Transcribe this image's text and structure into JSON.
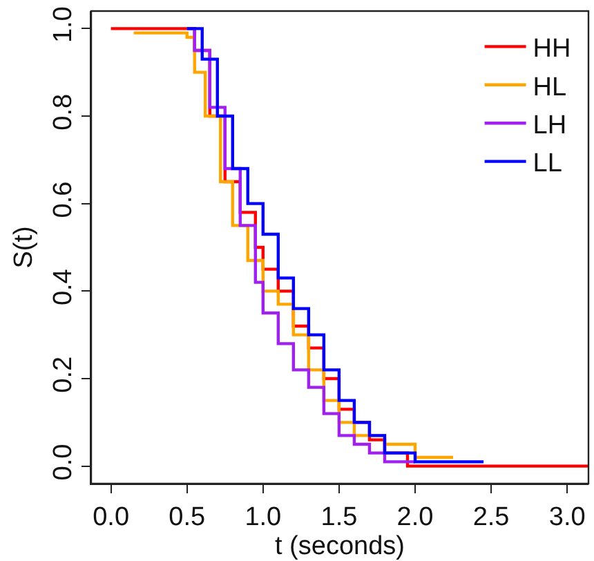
{
  "chart_data": {
    "type": "step",
    "xlabel": "t (seconds)",
    "ylabel": "S(t)",
    "xlim": [
      -0.13,
      3.14
    ],
    "ylim": [
      -0.04,
      1.04
    ],
    "xticks": [
      {
        "value": 0,
        "label": "0.0"
      },
      0.5,
      {
        "value": 1,
        "label": "1.0"
      },
      1.5,
      {
        "value": 2,
        "label": "2.0"
      },
      2.5,
      {
        "value": 3,
        "label": "3.0"
      }
    ],
    "yticks": [
      {
        "value": 0,
        "label": "0.0"
      },
      0.2,
      0.4,
      0.6,
      0.8,
      {
        "value": 1,
        "label": "1.0"
      }
    ],
    "grid": false,
    "legend": "top right",
    "line_style": "solid",
    "series": [
      {
        "name": "HH",
        "color": "#ff0000",
        "x": [
          0,
          0.5,
          0.55,
          0.65,
          0.75,
          0.85,
          0.95,
          1.0,
          1.1,
          1.2,
          1.3,
          1.4,
          1.5,
          1.6,
          1.7,
          1.8,
          1.95,
          3.14
        ],
        "values": [
          1,
          1,
          0.95,
          0.8,
          0.65,
          0.58,
          0.5,
          0.45,
          0.4,
          0.32,
          0.27,
          0.2,
          0.13,
          0.1,
          0.06,
          0.03,
          0,
          0
        ]
      },
      {
        "name": "HL",
        "color": "#ffa500",
        "x": [
          0.15,
          0.5,
          0.55,
          0.62,
          0.72,
          0.8,
          0.9,
          1.0,
          1.1,
          1.2,
          1.3,
          1.4,
          1.5,
          1.6,
          1.8,
          2.0,
          2.25
        ],
        "values": [
          0.99,
          0.98,
          0.9,
          0.8,
          0.65,
          0.55,
          0.47,
          0.4,
          0.37,
          0.3,
          0.22,
          0.15,
          0.1,
          0.07,
          0.05,
          0.02,
          0.02
        ]
      },
      {
        "name": "LH",
        "color": "#a020f0",
        "x": [
          0.5,
          0.55,
          0.65,
          0.75,
          0.85,
          0.95,
          1.0,
          1.1,
          1.2,
          1.3,
          1.4,
          1.5,
          1.6,
          1.7,
          1.8,
          2.0
        ],
        "values": [
          1,
          0.95,
          0.82,
          0.68,
          0.55,
          0.42,
          0.35,
          0.28,
          0.22,
          0.18,
          0.12,
          0.07,
          0.05,
          0.03,
          0.01,
          0.01
        ]
      },
      {
        "name": "LL",
        "color": "#0000ff",
        "x": [
          0.5,
          0.6,
          0.7,
          0.8,
          0.9,
          1.0,
          1.1,
          1.2,
          1.3,
          1.4,
          1.5,
          1.6,
          1.7,
          1.8,
          2.0,
          2.45
        ],
        "values": [
          1,
          0.93,
          0.8,
          0.68,
          0.6,
          0.53,
          0.43,
          0.36,
          0.3,
          0.22,
          0.15,
          0.1,
          0.07,
          0.03,
          0.01,
          0.01
        ]
      }
    ]
  }
}
